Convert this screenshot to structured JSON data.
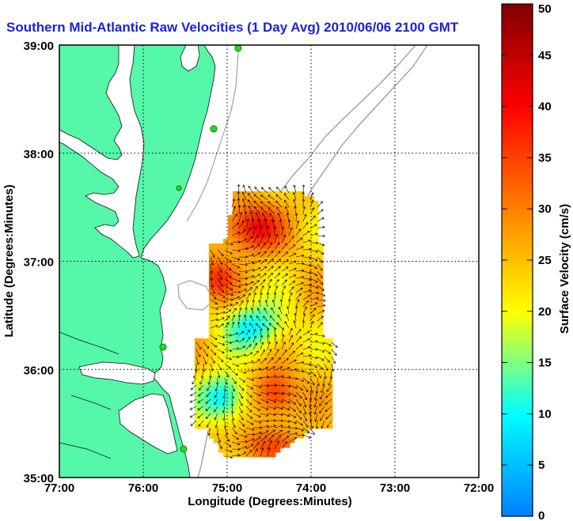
{
  "chart_data": {
    "type": "map",
    "title": "Southern Mid-Atlantic Raw Velocities (1 Day Avg) 2010/06/06 2100 GMT",
    "xlabel": "Longitude (Degrees:Minutes)",
    "ylabel": "Latitude (Degrees:Minutes)",
    "x_ticks": [
      "77:00",
      "76:00",
      "75:00",
      "74:00",
      "73:00",
      "72:00"
    ],
    "x_values": [
      -77,
      -76,
      -75,
      -74,
      -73,
      -72
    ],
    "y_ticks": [
      "39:00",
      "38:00",
      "37:00",
      "36:00",
      "35:00"
    ],
    "y_values": [
      39,
      38,
      37,
      36,
      35
    ],
    "xlim": [
      -77,
      -72
    ],
    "ylim": [
      35,
      39
    ],
    "grid": true,
    "colorbar": {
      "label": "Surface Velocity (cm/s)",
      "ticks": [
        "0",
        "5",
        "10",
        "15",
        "20",
        "25",
        "30",
        "35",
        "40",
        "45",
        "50"
      ],
      "range": [
        0,
        50
      ],
      "colors": [
        "#0080ff",
        "#00ffff",
        "#ffff00",
        "#ff8000",
        "#ff0000",
        "#800000"
      ]
    },
    "colors": {
      "land": "#55f7a8",
      "grid": "#000000",
      "isobath": "#9a9a9a",
      "stations": "#22dd22",
      "vectors": "#000000"
    }
  }
}
